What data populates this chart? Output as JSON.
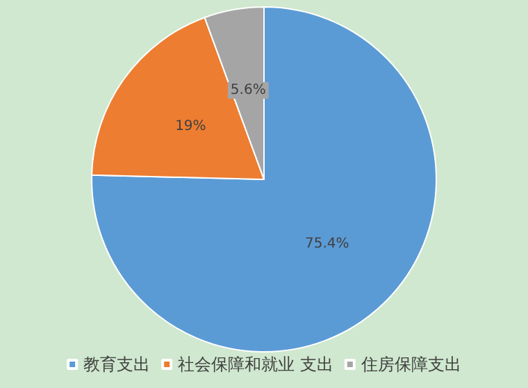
{
  "chart_data": {
    "type": "pie",
    "categories": [
      "教育支出",
      "社会保障和就业 支出",
      "住房保障支出"
    ],
    "values": [
      75.4,
      19,
      5.6
    ],
    "value_labels": [
      "75.4%",
      "19%",
      "5.6%"
    ],
    "colors": [
      "#5b9bd5",
      "#ed7d31",
      "#a5a5a5"
    ],
    "legend": "bottom"
  }
}
